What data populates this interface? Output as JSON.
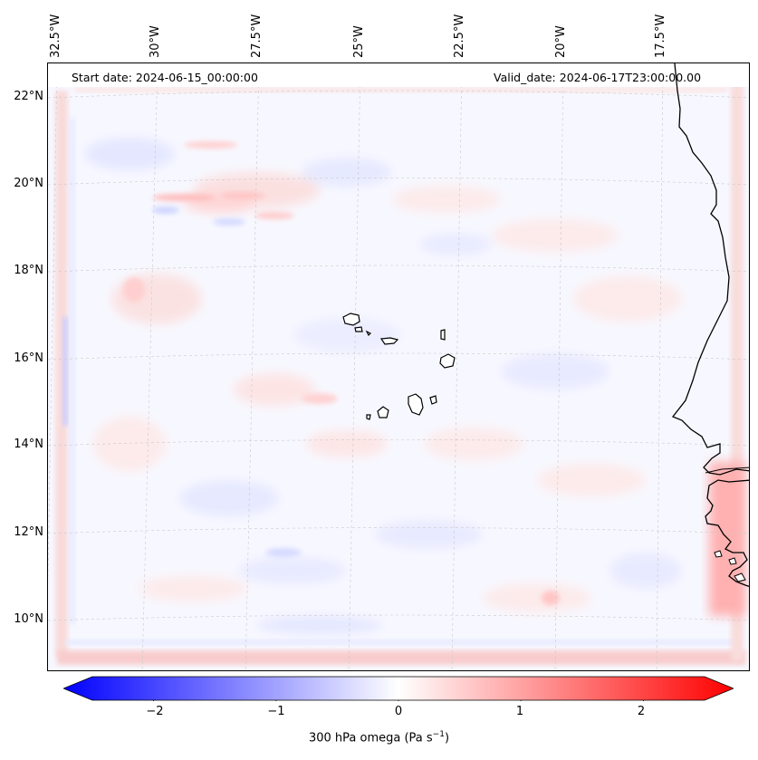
{
  "map": {
    "start_date": "Start date: 2024-06-15_00:00:00",
    "valid_date": "Valid_date: 2024-06-17T23:00:00.00",
    "lon_labels": [
      "32.5°W",
      "30°W",
      "27.5°W",
      "25°W",
      "22.5°W",
      "20°W",
      "17.5°W"
    ],
    "lat_labels": [
      "22°N",
      "20°N",
      "18°N",
      "16°N",
      "14°N",
      "12°N",
      "10°N"
    ],
    "land_color": "#000000",
    "gridlines": "dashed"
  },
  "colorbar": {
    "label_prefix": "300 hPa omega (Pa s",
    "label_exp": "−1",
    "label_suffix": ")",
    "ticks": [
      "−2",
      "−1",
      "0",
      "1",
      "2"
    ],
    "tick_values": [
      -2,
      -1,
      0,
      1,
      2
    ],
    "range": [
      -2.5,
      2.5
    ],
    "cmap": "bwr",
    "min_color": "#0000ff",
    "mid_color": "#ffffff",
    "max_color": "#ff0000",
    "extend": "both"
  }
}
